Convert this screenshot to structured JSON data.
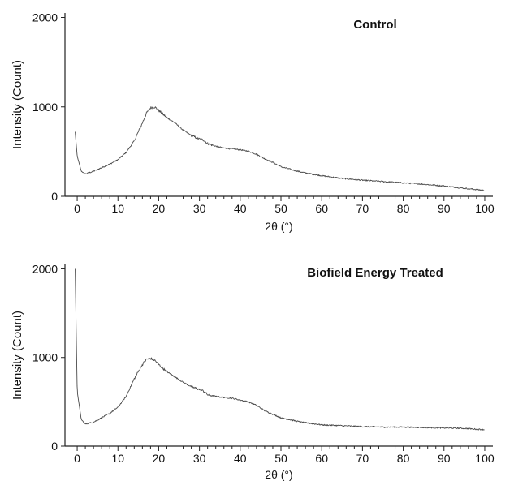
{
  "figure": {
    "colors": {
      "axis": "#222222",
      "trace": "#4a4a4a",
      "text": "#111111"
    }
  },
  "chart_data": [
    {
      "type": "line",
      "title": "Control",
      "xlabel": "2θ (°)",
      "ylabel": "Intensity (Count)",
      "xlim": [
        -3,
        102
      ],
      "ylim": [
        0,
        2050
      ],
      "xticks": [
        0,
        10,
        20,
        30,
        40,
        50,
        60,
        70,
        80,
        90,
        100
      ],
      "yticks": [
        0,
        1000,
        2000
      ],
      "tick_labels_x": [
        "0",
        "10",
        "20",
        "30",
        "40",
        "50",
        "60",
        "70",
        "80",
        "90",
        "100"
      ],
      "tick_labels_y": [
        "0",
        "1000",
        "2000"
      ],
      "grid": false,
      "series": [
        {
          "x": [
            -0.5,
            0,
            1,
            2,
            4,
            6,
            8,
            10,
            12,
            14,
            16,
            17,
            18,
            19,
            20,
            22,
            24,
            26,
            28,
            30,
            31,
            32,
            34,
            36,
            38,
            40,
            42,
            44,
            46,
            48,
            50,
            55,
            60,
            65,
            70,
            75,
            80,
            85,
            90,
            95,
            100
          ],
          "y": [
            720,
            450,
            280,
            250,
            280,
            320,
            360,
            410,
            490,
            620,
            820,
            930,
            990,
            1000,
            960,
            880,
            820,
            740,
            680,
            640,
            630,
            590,
            560,
            540,
            530,
            520,
            505,
            470,
            420,
            380,
            330,
            270,
            230,
            200,
            180,
            165,
            150,
            135,
            115,
            90,
            65
          ]
        }
      ]
    },
    {
      "type": "line",
      "title": "Biofield Energy Treated",
      "xlabel": "2θ (°)",
      "ylabel": "Intensity (Count)",
      "xlim": [
        -3,
        102
      ],
      "ylim": [
        0,
        2050
      ],
      "xticks": [
        0,
        10,
        20,
        30,
        40,
        50,
        60,
        70,
        80,
        90,
        100
      ],
      "yticks": [
        0,
        1000,
        2000
      ],
      "tick_labels_x": [
        "0",
        "10",
        "20",
        "30",
        "40",
        "50",
        "60",
        "70",
        "80",
        "90",
        "100"
      ],
      "tick_labels_y": [
        "0",
        "1000",
        "2000"
      ],
      "grid": false,
      "series": [
        {
          "x": [
            -0.5,
            0,
            1,
            2,
            4,
            6,
            8,
            10,
            12,
            14,
            16,
            17,
            18,
            19,
            20,
            22,
            24,
            26,
            28,
            30,
            31,
            32,
            34,
            36,
            38,
            40,
            42,
            44,
            46,
            48,
            50,
            55,
            60,
            65,
            70,
            75,
            80,
            85,
            90,
            95,
            100
          ],
          "y": [
            2000,
            620,
            300,
            250,
            270,
            320,
            370,
            440,
            560,
            760,
            920,
            980,
            990,
            970,
            920,
            840,
            780,
            720,
            670,
            640,
            620,
            580,
            560,
            550,
            540,
            520,
            500,
            460,
            400,
            360,
            320,
            270,
            240,
            230,
            220,
            215,
            215,
            210,
            205,
            200,
            185
          ]
        }
      ]
    }
  ]
}
